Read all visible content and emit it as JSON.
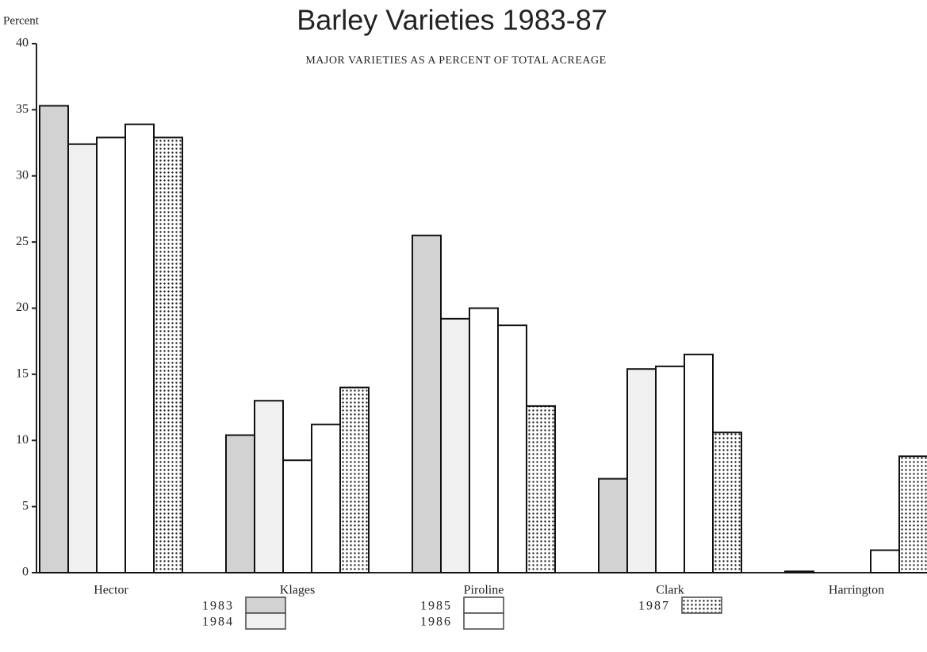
{
  "chart_data": {
    "type": "bar",
    "title": "Barley Varieties 1983-87",
    "subtitle": "MAJOR VARIETIES AS A PERCENT OF TOTAL ACREAGE",
    "y_label": "Percent",
    "categories": [
      "Hector",
      "Klages",
      "Piroline",
      "Clark",
      "Harrington"
    ],
    "series": [
      {
        "name": "1983",
        "color": "#d2d2d2",
        "values": [
          35.3,
          10.4,
          25.5,
          7.1,
          0.1
        ]
      },
      {
        "name": "1984",
        "color": "#f0f0f0",
        "values": [
          32.4,
          13.0,
          19.2,
          15.4,
          null
        ]
      },
      {
        "name": "1985",
        "color": "#ffffff",
        "values": [
          32.9,
          8.5,
          20.0,
          15.6,
          null
        ]
      },
      {
        "name": "1986",
        "color": "#ffffff",
        "values": [
          33.9,
          11.2,
          18.7,
          16.5,
          1.7
        ]
      },
      {
        "name": "1987",
        "color": "#222222",
        "pattern": "dots",
        "values": [
          32.9,
          14.0,
          12.6,
          10.6,
          8.8
        ]
      }
    ],
    "ylim": [
      0,
      40
    ],
    "yticks": [
      0,
      5,
      10,
      15,
      20,
      25,
      30,
      35,
      40
    ],
    "grid": false
  }
}
